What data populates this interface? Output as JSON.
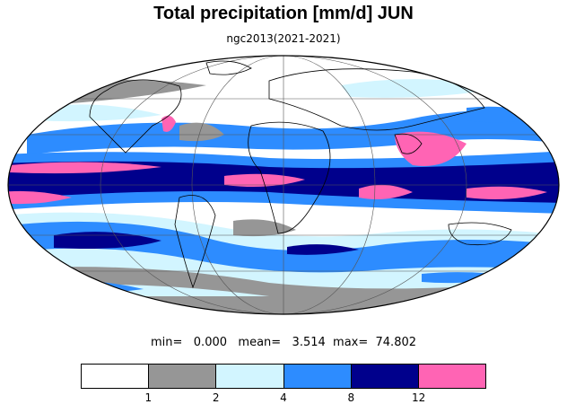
{
  "title": "Total precipitation [mm/d] JUN",
  "subtitle": "ngc2013(2021-2021)",
  "stats": {
    "text": "min=   0.000   mean=   3.514  max=  74.802"
  },
  "projection": "mollweide",
  "colorbar": {
    "colors": [
      "#ffffff",
      "#969696",
      "#d2f5ff",
      "#2d8cff",
      "#00008c",
      "#ff64b4"
    ],
    "tick_labels": [
      "1",
      "2",
      "4",
      "8",
      "12"
    ],
    "levels": [
      1,
      2,
      4,
      8,
      12
    ]
  },
  "colors": {
    "coastline": "#000000",
    "grid": "#555555",
    "outline": "#000000"
  }
}
